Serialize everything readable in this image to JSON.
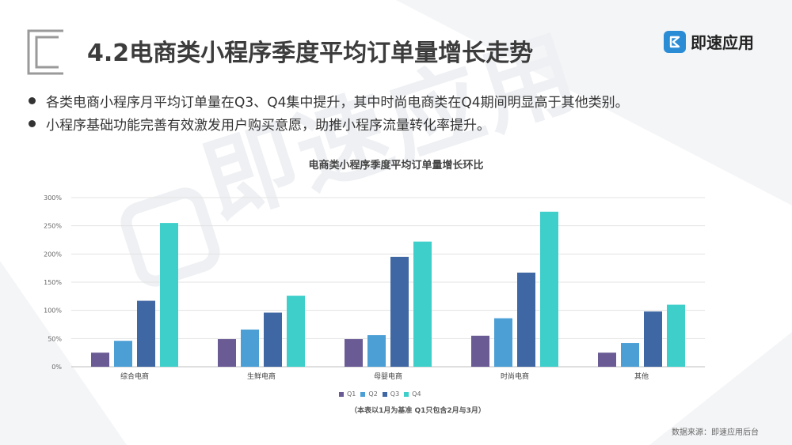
{
  "header": {
    "title": "4.2电商类小程序季度平均订单量增长走势",
    "brand_name": "即速应用"
  },
  "bullets": [
    "各类电商小程序月平均订单量在Q3、Q4集中提升，其中时尚电商类在Q4期间明显高于其他类别。",
    "小程序基础功能完善有效激发用户购买意愿，助推小程序流量转化率提升。"
  ],
  "watermark_text": "即速应用",
  "chart_data": {
    "type": "bar",
    "title": "电商类小程序季度平均订单量增长环比",
    "categories": [
      "综合电商",
      "生鲜电商",
      "母婴电商",
      "时尚电商",
      "其他"
    ],
    "series": [
      {
        "name": "Q1",
        "values": [
          25,
          49,
          49,
          55,
          25
        ],
        "color": "#6b5b95"
      },
      {
        "name": "Q2",
        "values": [
          46,
          66,
          56,
          86,
          42
        ],
        "color": "#4b9fd5"
      },
      {
        "name": "Q3",
        "values": [
          117,
          96,
          195,
          167,
          98
        ],
        "color": "#3f67a3"
      },
      {
        "name": "Q4",
        "values": [
          255,
          126,
          222,
          275,
          110
        ],
        "color": "#3ecfcb"
      }
    ],
    "yticks": [
      "0%",
      "50%",
      "100%",
      "150%",
      "200%",
      "250%",
      "300%"
    ],
    "ylim": [
      0,
      300
    ],
    "grid": true,
    "legend_position": "bottom",
    "note": "（本表以1月为基准    Q1只包含2月与3月）"
  },
  "source": "数据来源：即速应用后台"
}
